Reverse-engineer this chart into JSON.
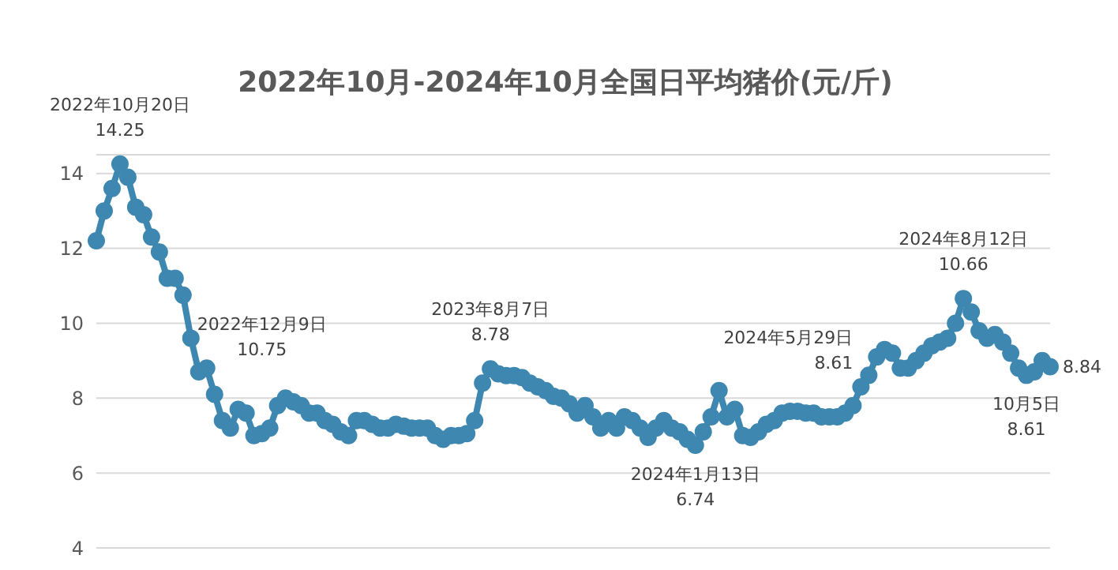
{
  "chart_data": {
    "type": "line",
    "title": "2022年10月-2024年10月全国日平均猪价(元/斤)",
    "categories": [
      null,
      null,
      null,
      null,
      null,
      null,
      null,
      null,
      null,
      null,
      null,
      null,
      null,
      null,
      null,
      null,
      null,
      null,
      null,
      null,
      null,
      null,
      null,
      null,
      null,
      null,
      null,
      null,
      null,
      null,
      null,
      null,
      null,
      null,
      null,
      null,
      null,
      null,
      null,
      null,
      null,
      null,
      null,
      null,
      null,
      null,
      null,
      null,
      null,
      null,
      null,
      null,
      null,
      null,
      null,
      null,
      null,
      null,
      null,
      null,
      null,
      null,
      null,
      null,
      null,
      null,
      null,
      null,
      null,
      null,
      null,
      null,
      null,
      null,
      null,
      null,
      null,
      null,
      null,
      null,
      null,
      null,
      null,
      null,
      null,
      null,
      null,
      null,
      null,
      null,
      null,
      null,
      null,
      null,
      null,
      null,
      null,
      null,
      null,
      null,
      null,
      null,
      null,
      null,
      null,
      null,
      null,
      null,
      null,
      null,
      null,
      null,
      null,
      null,
      null,
      null,
      null,
      null,
      null,
      null,
      null,
      null
    ],
    "series": [
      {
        "color": "#3d87b0",
        "values": [
          12.2,
          13.0,
          13.6,
          14.25,
          13.9,
          13.1,
          12.9,
          12.3,
          11.9,
          11.2,
          11.2,
          10.75,
          9.6,
          8.7,
          8.8,
          8.1,
          7.4,
          7.2,
          7.7,
          7.6,
          7.0,
          7.05,
          7.2,
          7.8,
          8.0,
          7.9,
          7.8,
          7.6,
          7.6,
          7.4,
          7.3,
          7.1,
          7.0,
          7.4,
          7.4,
          7.3,
          7.2,
          7.2,
          7.3,
          7.25,
          7.2,
          7.2,
          7.2,
          7.0,
          6.9,
          7.0,
          7.0,
          7.05,
          7.4,
          8.4,
          8.78,
          8.65,
          8.6,
          8.6,
          8.55,
          8.4,
          8.3,
          8.2,
          8.05,
          8.0,
          7.85,
          7.6,
          7.8,
          7.5,
          7.2,
          7.4,
          7.2,
          7.5,
          7.4,
          7.2,
          6.95,
          7.2,
          7.4,
          7.2,
          7.1,
          6.9,
          6.74,
          7.1,
          7.5,
          8.2,
          7.5,
          7.7,
          7.0,
          6.95,
          7.1,
          7.3,
          7.4,
          7.6,
          7.65,
          7.65,
          7.6,
          7.6,
          7.5,
          7.5,
          7.5,
          7.6,
          7.8,
          8.3,
          8.61,
          9.1,
          9.3,
          9.2,
          8.8,
          8.8,
          9.0,
          9.2,
          9.4,
          9.5,
          9.6,
          10.0,
          10.66,
          10.3,
          9.8,
          9.6,
          9.7,
          9.5,
          9.2,
          8.8,
          8.61,
          8.7,
          9.0,
          8.84
        ],
        "value_labels": [
          null,
          null,
          null,
          "2022年10月20日\n14.25",
          null,
          null,
          null,
          null,
          null,
          null,
          null,
          "2022年12月9日\n10.75",
          null,
          null,
          null,
          null,
          null,
          null,
          null,
          null,
          null,
          null,
          null,
          null,
          null,
          null,
          null,
          null,
          null,
          null,
          null,
          null,
          null,
          null,
          null,
          null,
          null,
          null,
          null,
          null,
          null,
          null,
          null,
          null,
          null,
          null,
          null,
          null,
          null,
          null,
          "2023年8月7日\n8.78",
          null,
          null,
          null,
          null,
          null,
          null,
          null,
          null,
          null,
          null,
          null,
          null,
          null,
          null,
          null,
          null,
          null,
          null,
          null,
          null,
          null,
          null,
          null,
          null,
          null,
          "2024年1月13日\n6.74",
          null,
          null,
          null,
          null,
          null,
          null,
          null,
          null,
          null,
          null,
          null,
          null,
          null,
          null,
          null,
          null,
          null,
          null,
          null,
          null,
          null,
          "2024年5月29日\n8.61",
          null,
          null,
          null,
          null,
          null,
          null,
          null,
          null,
          null,
          null,
          null,
          "2024年8月12日\n10.66",
          null,
          null,
          null,
          null,
          null,
          null,
          null,
          "10月5日\n8.61",
          null,
          null,
          "8.84"
        ]
      }
    ],
    "ylim": [
      4,
      14.5
    ],
    "yticks": [
      4,
      6,
      8,
      10,
      12,
      14
    ],
    "grid": "y",
    "marker": "circle",
    "line_style": "solid",
    "legend": false,
    "tick_labels": "y"
  }
}
